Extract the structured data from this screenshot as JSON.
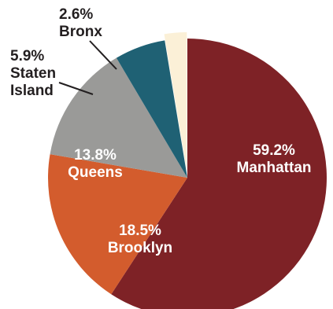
{
  "chart_data": {
    "type": "pie",
    "title": "",
    "slices": [
      {
        "name": "Manhattan",
        "value": 59.2,
        "percent_label": "59.2%",
        "color": "#7e2226",
        "label_pos": "inside",
        "label_color": "#ffffff"
      },
      {
        "name": "Brooklyn",
        "value": 18.5,
        "percent_label": "18.5%",
        "color": "#d35c2d",
        "label_pos": "inside",
        "label_color": "#ffffff"
      },
      {
        "name": "Queens",
        "value": 13.8,
        "percent_label": "13.8%",
        "color": "#9a9a98",
        "label_pos": "inside",
        "label_color": "#ffffff"
      },
      {
        "name": "Staten Island",
        "value": 5.9,
        "percent_label": "5.9%",
        "color": "#1f6174",
        "label_pos": "outside",
        "label_color": "#231f20"
      },
      {
        "name": "Bronx",
        "value": 2.6,
        "percent_label": "2.6%",
        "color": "#fbf0d7",
        "label_pos": "outside",
        "label_color": "#231f20"
      }
    ],
    "start_angle_deg": 0,
    "direction": "clockwise",
    "legend": "none",
    "grid": false
  }
}
